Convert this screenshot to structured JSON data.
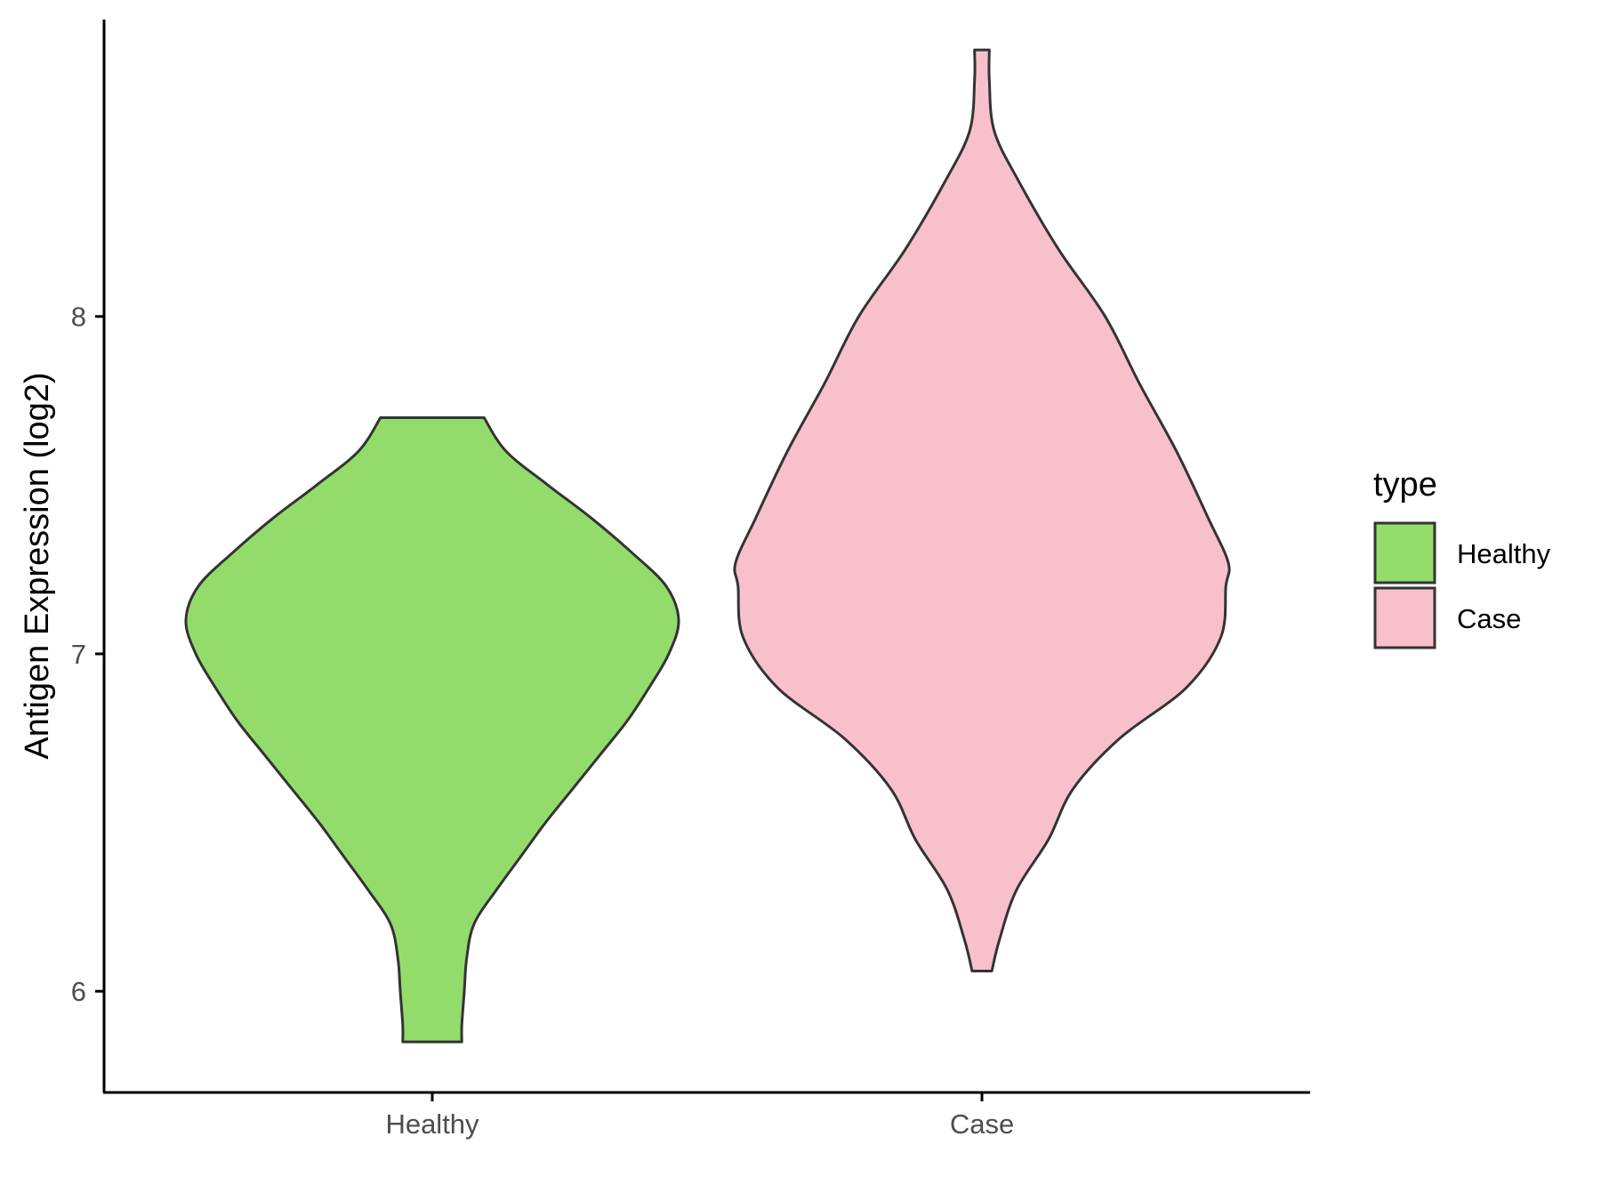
{
  "chart_data": {
    "type": "violin",
    "title": "",
    "xlabel": "",
    "ylabel": "Antigen Expression (log2)",
    "ylim": [
      5.7,
      8.88
    ],
    "yticks": [
      6,
      7,
      8
    ],
    "categories": [
      "Healthy",
      "Case"
    ],
    "series": [
      {
        "name": "Healthy",
        "color": "#93dc6b",
        "min": 5.85,
        "max": 7.7,
        "density": [
          [
            5.85,
            0.12
          ],
          [
            5.9,
            0.12
          ],
          [
            6.0,
            0.13
          ],
          [
            6.1,
            0.14
          ],
          [
            6.2,
            0.17
          ],
          [
            6.3,
            0.26
          ],
          [
            6.4,
            0.36
          ],
          [
            6.5,
            0.46
          ],
          [
            6.6,
            0.57
          ],
          [
            6.7,
            0.68
          ],
          [
            6.8,
            0.79
          ],
          [
            6.9,
            0.88
          ],
          [
            7.0,
            0.96
          ],
          [
            7.1,
            1.0
          ],
          [
            7.2,
            0.95
          ],
          [
            7.3,
            0.81
          ],
          [
            7.4,
            0.65
          ],
          [
            7.5,
            0.47
          ],
          [
            7.6,
            0.3
          ],
          [
            7.7,
            0.21
          ]
        ]
      },
      {
        "name": "Case",
        "color": "#f8c0cb",
        "min": 6.06,
        "max": 8.79,
        "density": [
          [
            6.06,
            0.04
          ],
          [
            6.15,
            0.07
          ],
          [
            6.3,
            0.14
          ],
          [
            6.45,
            0.27
          ],
          [
            6.6,
            0.37
          ],
          [
            6.75,
            0.56
          ],
          [
            6.9,
            0.83
          ],
          [
            7.05,
            0.97
          ],
          [
            7.2,
            0.99
          ],
          [
            7.27,
            1.0
          ],
          [
            7.4,
            0.92
          ],
          [
            7.6,
            0.79
          ],
          [
            7.8,
            0.64
          ],
          [
            8.0,
            0.5
          ],
          [
            8.2,
            0.31
          ],
          [
            8.4,
            0.15
          ],
          [
            8.55,
            0.05
          ],
          [
            8.7,
            0.03
          ],
          [
            8.79,
            0.03
          ]
        ]
      }
    ],
    "legend": {
      "title": "type",
      "position": "right",
      "entries": [
        "Healthy",
        "Case"
      ]
    }
  }
}
